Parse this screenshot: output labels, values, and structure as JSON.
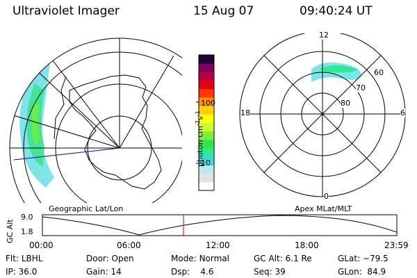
{
  "header": {
    "instrument": "Ultraviolet Imager",
    "date": "15 Aug 07",
    "time": "09:40:24 UT"
  },
  "colorbar": {
    "unit_label": "photon cm",
    "unit_exp1": "-2",
    "unit_mid": "s",
    "unit_exp2": "-1",
    "ticks": [
      {
        "label": "100",
        "value": 100
      },
      {
        "label": "10",
        "value": 10
      }
    ],
    "colors": [
      "#ffffff",
      "#e3e3e3",
      "#bfe9f2",
      "#3fd8d8",
      "#2fe89a",
      "#35e24f",
      "#7cf03a",
      "#c8ff2a",
      "#ffff10",
      "#ffd000",
      "#ff9500",
      "#ff3a00",
      "#e0001a",
      "#b5003d",
      "#800060",
      "#200030"
    ]
  },
  "maps": {
    "left_label": "Geographic Lat/Lon",
    "right_label": "Apex MLat/MLT",
    "polar_labels": {
      "mlt_top": "12",
      "mlt_left": "18",
      "mlt_right": "6",
      "mlt_bottom": "0",
      "lat_60": "60",
      "lat_70": "70",
      "lat_80": "80"
    }
  },
  "altitude_plot": {
    "ylabel": "GC Alt",
    "ytick_top": "9.0",
    "ytick_bottom": "1.8",
    "xticks": [
      "00:00",
      "06:00",
      "12:00",
      "18:00",
      "23:59"
    ],
    "cursor_time": "09:40"
  },
  "info": {
    "flt_label": "Flt:",
    "flt_value": "LBHL",
    "ip_label": "IP:",
    "ip_value": "36.0",
    "door_label": "Door:",
    "door_value": "Open",
    "gain_label": "Gain:",
    "gain_value": "14",
    "mode_label": "Mode:",
    "mode_value": "Normal",
    "dsp_label": "Dsp:",
    "dsp_value": "4.6",
    "gcalt_label": "GC Alt:",
    "gcalt_value": "6.1 Re",
    "seq_label": "Seq:",
    "seq_value": "39",
    "glat_label": "GLat:",
    "glat_value": "−79.5",
    "glon_label": "GLon:",
    "glon_value": "84.9"
  }
}
